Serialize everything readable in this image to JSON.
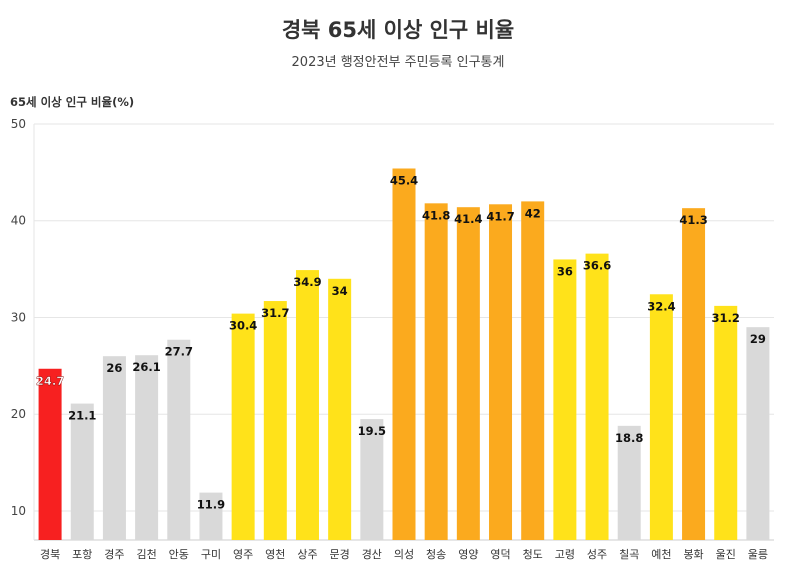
{
  "chart_data": {
    "type": "bar",
    "title": "경북 65세 이상 인구 비율",
    "subtitle": "2023년 행정안전부 주민등록 인구통계",
    "ylabel": "65세 이상 인구 비율(%)",
    "xlabel": "",
    "ylim": [
      7,
      50
    ],
    "yticks": [
      10,
      20,
      30,
      40,
      50
    ],
    "grid": true,
    "categories": [
      "경북",
      "포항",
      "경주",
      "김천",
      "안동",
      "구미",
      "영주",
      "영천",
      "상주",
      "문경",
      "경산",
      "의성",
      "청송",
      "영양",
      "영덕",
      "청도",
      "고령",
      "성주",
      "칠곡",
      "예천",
      "봉화",
      "울진",
      "울릉"
    ],
    "values": [
      24.7,
      21.1,
      26,
      26.1,
      27.7,
      11.9,
      30.4,
      31.7,
      34.9,
      34,
      19.5,
      45.4,
      41.8,
      41.4,
      41.7,
      42,
      36,
      36.6,
      18.8,
      32.4,
      41.3,
      31.2,
      29
    ],
    "colors": {
      "highlight": "#f72020",
      "gray": "#d9d9d9",
      "yellow": "#ffe21a",
      "orange": "#fbaa1e"
    },
    "bar_color_groups": [
      "highlight",
      "gray",
      "gray",
      "gray",
      "gray",
      "gray",
      "yellow",
      "yellow",
      "yellow",
      "yellow",
      "gray",
      "orange",
      "orange",
      "orange",
      "orange",
      "orange",
      "yellow",
      "yellow",
      "gray",
      "yellow",
      "orange",
      "yellow",
      "gray"
    ]
  }
}
